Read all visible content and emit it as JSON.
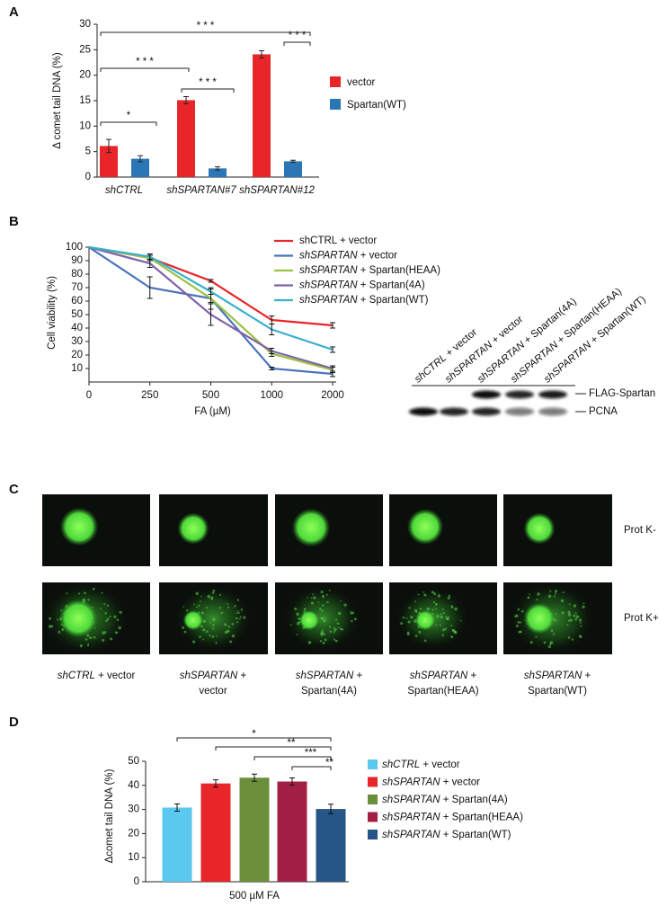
{
  "panels": [
    "A",
    "B",
    "C",
    "D"
  ],
  "chart_data": [
    {
      "type": "bar",
      "y_label": "Δ comet tail DNA (%)",
      "categories": [
        "shCTRL",
        "shSPARTAN#7",
        "shSPARTAN#12"
      ],
      "series": [
        {
          "name": "vector",
          "color": "#e8262a",
          "values": [
            6.1,
            15.1,
            24.1
          ],
          "errors": [
            1.3,
            0.7,
            0.7
          ]
        },
        {
          "name": "Spartan(WT)",
          "color": "#2b76b4",
          "values": [
            3.6,
            1.7,
            3.1
          ],
          "errors": [
            0.6,
            0.3,
            0.2
          ]
        }
      ],
      "ylim": [
        0,
        30
      ],
      "yticks": [
        0,
        5,
        10,
        15,
        20,
        25,
        30
      ],
      "annotations": [
        "* * *",
        "* * *",
        "* * *",
        "* * *",
        "*"
      ]
    },
    {
      "type": "line",
      "x_label": "FA (µM)",
      "y_label": "Cell viability (%)",
      "categories": [
        "0",
        "250",
        "500",
        "1000",
        "2000"
      ],
      "series": [
        {
          "name": "shCTRL + vector",
          "color": "#e8262a",
          "values": [
            100,
            92,
            75,
            46,
            42
          ],
          "errors": [
            0,
            2,
            1,
            3,
            2
          ]
        },
        {
          "name": "shSPARTAN + vector",
          "color": "#4a73b8",
          "values": [
            100,
            70,
            62,
            10,
            6
          ],
          "errors": [
            0,
            8,
            8,
            1,
            2
          ]
        },
        {
          "name": "shSPARTAN + Spartan(HEAA)",
          "color": "#9ac142",
          "values": [
            100,
            92,
            62,
            21,
            9
          ],
          "errors": [
            0,
            2,
            3,
            2,
            2
          ]
        },
        {
          "name": "shSPARTAN + Spartan(4A)",
          "color": "#8063a8",
          "values": [
            100,
            88,
            50,
            23,
            10
          ],
          "errors": [
            0,
            3,
            8,
            2,
            2
          ]
        },
        {
          "name": "shSPARTAN + Spartan(WT)",
          "color": "#3ab0cc",
          "values": [
            100,
            93,
            67,
            39,
            24
          ],
          "errors": [
            0,
            2,
            2,
            4,
            2
          ]
        }
      ],
      "ylim": [
        0,
        100
      ],
      "yticks": [
        10,
        20,
        30,
        40,
        50,
        60,
        70,
        80,
        90,
        100
      ]
    },
    {
      "type": "bar",
      "x_label": "500 µM FA",
      "y_label": "Δcomet tail DNA (%)",
      "categories": [
        "shCTRL + vector",
        "shSPARTAN + vector",
        "shSPARTAN + Spartan(4A)",
        "shSPARTAN + Spartan(HEAA)",
        "shSPARTAN + Spartan(WT)"
      ],
      "colors": [
        "#5bc8ef",
        "#e8262a",
        "#6b8e3a",
        "#a31f45",
        "#265587"
      ],
      "values": [
        30.8,
        40.8,
        43.2,
        41.6,
        30.2
      ],
      "errors": [
        1.5,
        1.5,
        1.5,
        1.5,
        2.0
      ],
      "ylim": [
        0,
        50
      ],
      "yticks": [
        0,
        10,
        20,
        30,
        40,
        50
      ],
      "annotations": [
        "*",
        "**",
        "***",
        "**"
      ]
    }
  ],
  "blot": {
    "lanes": [
      "shCTRL + vector",
      "shSPARTAN + vector",
      "shSPARTAN + Spartan(4A)",
      "shSPARTAN + Spartan(HEAA)",
      "shSPARTAN + Spartan(WT)"
    ],
    "bands": [
      "FLAG-Spartan",
      "PCNA"
    ]
  },
  "micrographs": {
    "rows": [
      "Prot K-",
      "Prot K+"
    ],
    "columns": [
      [
        "shCTRL + vector"
      ],
      [
        "shSPARTAN +",
        "vector"
      ],
      [
        "shSPARTAN +",
        "Spartan(4A)"
      ],
      [
        "shSPARTAN +",
        "Spartan(HEAA)"
      ],
      [
        "shSPARTAN +",
        "Spartan(WT)"
      ]
    ]
  }
}
